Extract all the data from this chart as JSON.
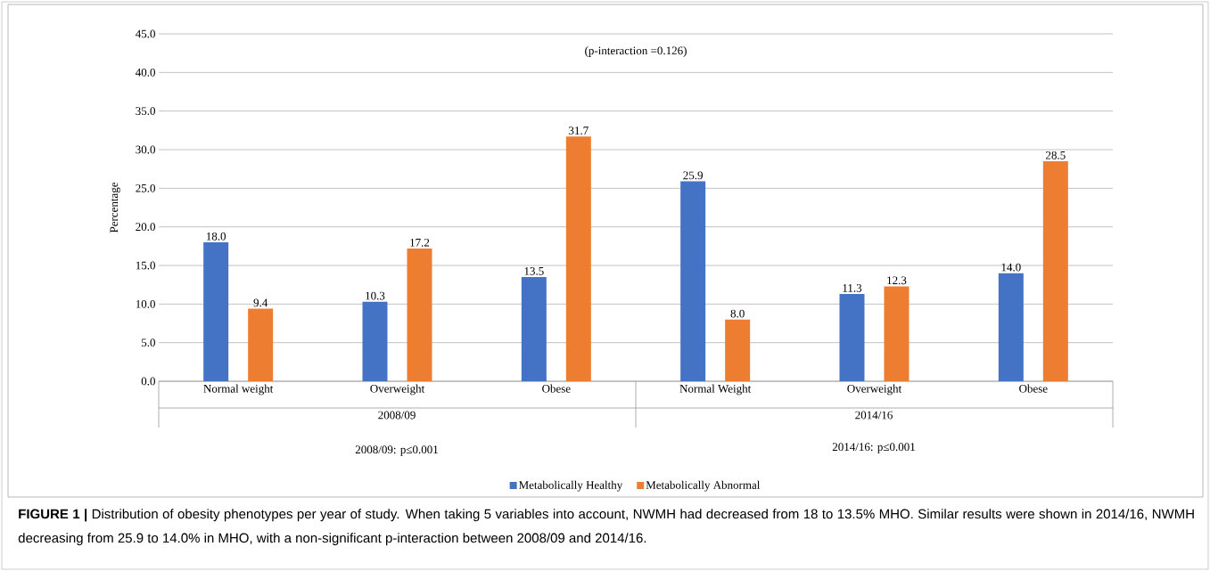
{
  "chart_data": {
    "type": "bar",
    "categories": [
      "Normal weight",
      "Overweight",
      "Obese",
      "Normal Weight",
      "Overweight",
      "Obese"
    ],
    "series": [
      {
        "name": "Metabolically Healthy",
        "color": "#4472c4",
        "values": [
          18.0,
          10.3,
          13.5,
          25.9,
          11.3,
          14.0
        ],
        "value_labels": [
          "18.0",
          "10.3",
          "13.5",
          "25.9",
          "11.3",
          "14.0"
        ]
      },
      {
        "name": "Metabolically Abnormal",
        "color": "#ed7d31",
        "values": [
          9.4,
          17.2,
          31.7,
          8.0,
          12.3,
          28.5
        ],
        "value_labels": [
          "9.4",
          "17.2",
          "31.7",
          "8.0",
          "12.3",
          "28.5"
        ]
      }
    ],
    "ylabel": "Percentage",
    "ylim": [
      0,
      45
    ],
    "yticks": [
      {
        "value": 0,
        "label": "0.0"
      },
      {
        "value": 5,
        "label": "5.0"
      },
      {
        "value": 10,
        "label": "10.0"
      },
      {
        "value": 15,
        "label": "15.0"
      },
      {
        "value": 20,
        "label": "20.0"
      },
      {
        "value": 25,
        "label": "25.0"
      },
      {
        "value": 30,
        "label": "30.0"
      },
      {
        "value": 35,
        "label": "35.0"
      },
      {
        "value": 40,
        "label": "40.0"
      },
      {
        "value": 45,
        "label": "45.0"
      }
    ],
    "grid": "y",
    "legend": "bottom",
    "annotations": [
      "(p-interaction =0.126)",
      "2008/09",
      "2014/16",
      "2008/09: p≤0.001",
      "2014/16: p≤0.001",
      "**FIGURE 1 |** Distribution of obesity phenotypes per year of study. When taking 5 variables into account, NWMH had decreased from 18 to 13.5% MHO. Similar results were shown in 2014/16, NWMH decreasing from 25.9 to 14.0% in MHO, with a non-significant p-interaction between 2008/09 and 2014/16."
    ]
  }
}
